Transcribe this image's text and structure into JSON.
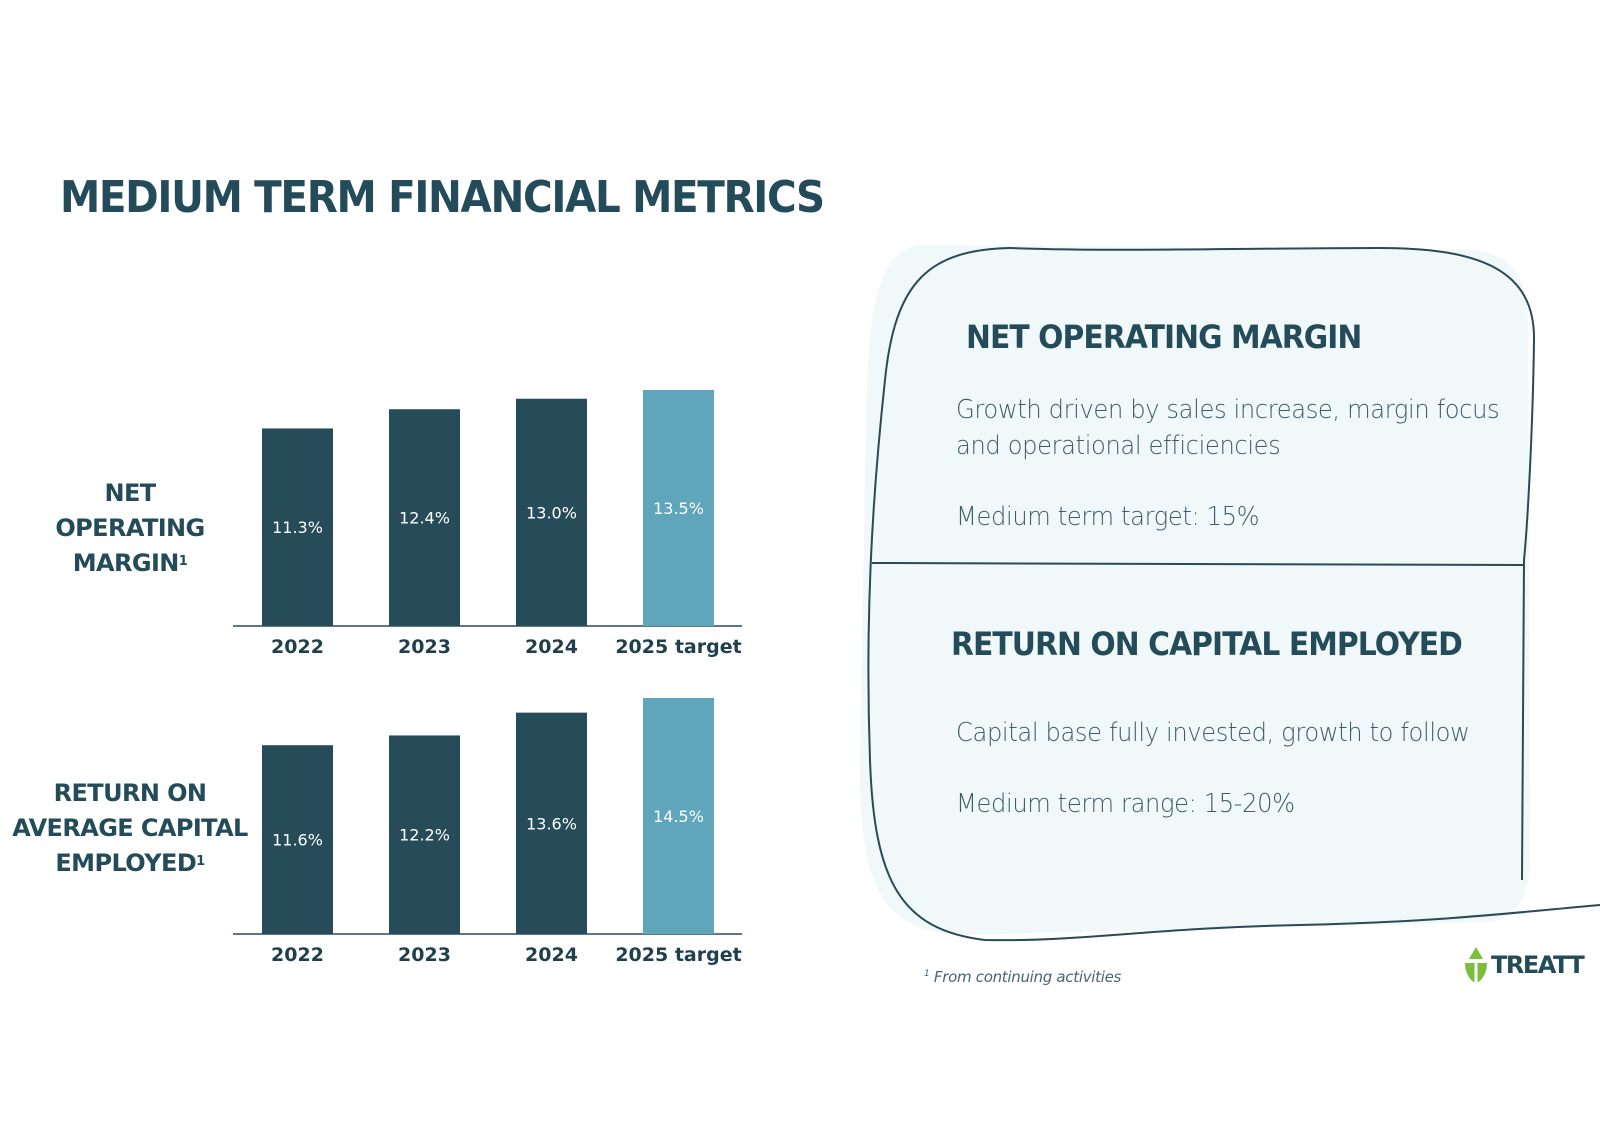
{
  "title": "MEDIUM TERM FINANCIAL METRICS",
  "colors": {
    "dark": "#264c5a",
    "accent": "#5fa6bd",
    "panel": "#f1f8f9",
    "outline": "#2a4a57",
    "logo_green": "#7bbe3b"
  },
  "chart_data": [
    {
      "type": "bar",
      "label_lines": [
        "NET",
        "OPERATING",
        "MARGIN"
      ],
      "footnote_ref": "1",
      "categories": [
        "2022",
        "2023",
        "2024",
        "2025 target"
      ],
      "values": [
        11.3,
        12.4,
        13.0,
        13.5
      ],
      "value_labels": [
        "11.3%",
        "12.4%",
        "13.0%",
        "13.5%"
      ],
      "highlight_index": 3,
      "ylim": [
        0,
        13.5
      ]
    },
    {
      "type": "bar",
      "label_lines": [
        "RETURN ON",
        "AVERAGE CAPITAL",
        "EMPLOYED"
      ],
      "footnote_ref": "1",
      "categories": [
        "2022",
        "2023",
        "2024",
        "2025 target"
      ],
      "values": [
        11.6,
        12.2,
        13.6,
        14.5
      ],
      "value_labels": [
        "11.6%",
        "12.2%",
        "13.6%",
        "14.5%"
      ],
      "highlight_index": 3,
      "ylim": [
        0,
        14.5
      ]
    }
  ],
  "panel": {
    "section1": {
      "heading": "NET OPERATING MARGIN",
      "line1": "Growth driven by sales increase, margin focus",
      "line2": "and operational efficiencies",
      "target": "Medium term target: 15%"
    },
    "section2": {
      "heading": "RETURN ON CAPITAL EMPLOYED",
      "text": "Capital base fully invested, growth to follow",
      "range": "Medium term range: 15-20%"
    }
  },
  "footnote": {
    "marker": "1",
    "text": "From continuing activities"
  },
  "logo": {
    "text": "TREATT",
    "icon": "leaf-droplet-icon"
  }
}
